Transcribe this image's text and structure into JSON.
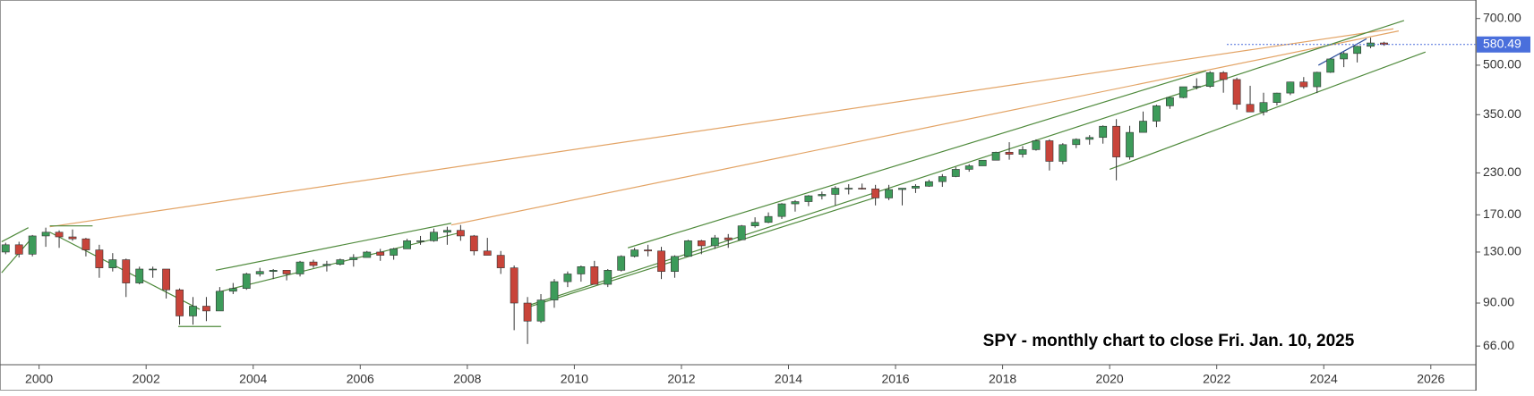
{
  "chart_data": {
    "type": "candlestick",
    "annotation": "SPY - monthly chart to close Fri. Jan. 10, 2025",
    "log_scale": true,
    "up_color": "#3d9b5a",
    "down_color": "#c8443a",
    "xlim": [
      1999.27,
      2026.84
    ],
    "xticks": [
      2000,
      2002,
      2004,
      2006,
      2008,
      2010,
      2012,
      2014,
      2016,
      2018,
      2020,
      2022,
      2024,
      2026
    ],
    "ylim": [
      57.7,
      800
    ],
    "yticks": [
      {
        "value": 66,
        "label": "66.00"
      },
      {
        "value": 90,
        "label": "90.00"
      },
      {
        "value": 130,
        "label": "130.00"
      },
      {
        "value": 170,
        "label": "170.00"
      },
      {
        "value": 230,
        "label": "230.00"
      },
      {
        "value": 350,
        "label": "350.00"
      },
      {
        "value": 500,
        "label": "500.00"
      },
      {
        "value": 700,
        "label": "700.00"
      }
    ],
    "last_price": 580.49,
    "last_price_color": "#4a6fdc",
    "x": [
      1999.25,
      1999.5,
      1999.75,
      2000.0,
      2000.25,
      2000.5,
      2000.75,
      2001.0,
      2001.25,
      2001.5,
      2001.75,
      2002.0,
      2002.25,
      2002.5,
      2002.75,
      2003.0,
      2003.25,
      2003.5,
      2003.75,
      2004.0,
      2004.25,
      2004.5,
      2004.75,
      2005.0,
      2005.25,
      2005.5,
      2005.75,
      2006.0,
      2006.25,
      2006.5,
      2006.75,
      2007.0,
      2007.25,
      2007.5,
      2007.75,
      2008.0,
      2008.25,
      2008.5,
      2008.75,
      2009.0,
      2009.25,
      2009.5,
      2009.75,
      2010.0,
      2010.25,
      2010.5,
      2010.75,
      2011.0,
      2011.25,
      2011.5,
      2011.75,
      2012.0,
      2012.25,
      2012.5,
      2012.75,
      2013.0,
      2013.25,
      2013.5,
      2013.75,
      2014.0,
      2014.25,
      2014.5,
      2014.75,
      2015.0,
      2015.25,
      2015.5,
      2015.75,
      2016.0,
      2016.25,
      2016.5,
      2016.75,
      2017.0,
      2017.25,
      2017.5,
      2017.75,
      2018.0,
      2018.25,
      2018.5,
      2018.75,
      2019.0,
      2019.25,
      2019.5,
      2019.75,
      2020.0,
      2020.25,
      2020.5,
      2020.75,
      2021.0,
      2021.25,
      2021.5,
      2021.75,
      2022.0,
      2022.25,
      2022.5,
      2022.75,
      2023.0,
      2023.25,
      2023.5,
      2023.75,
      2024.0,
      2024.25,
      2024.5,
      2024.75,
      2025.0
    ],
    "open": [
      130,
      137,
      128,
      146,
      150,
      145,
      143,
      132,
      116,
      123,
      104,
      115,
      115,
      99,
      82,
      88,
      85,
      98,
      100,
      111,
      113,
      114,
      111,
      121,
      118,
      119,
      123,
      125,
      130,
      127,
      133,
      141,
      141,
      150,
      152,
      146,
      131,
      127,
      116,
      90,
      79,
      92,
      105,
      111,
      117,
      103,
      114,
      126,
      132,
      131,
      113,
      126,
      141,
      136,
      144,
      142,
      157,
      161,
      168,
      184,
      187,
      195,
      197,
      206,
      206,
      205,
      192,
      204,
      206,
      209,
      216,
      224,
      236,
      242,
      252,
      267,
      263,
      272,
      290,
      250,
      282,
      293,
      297,
      322,
      258,
      308,
      334,
      373,
      396,
      428,
      429,
      474,
      451,
      377,
      357,
      382,
      409,
      443,
      428,
      475,
      523,
      544,
      573,
      587
    ],
    "high": [
      139,
      140,
      147,
      155,
      152,
      153,
      144,
      137,
      129,
      124,
      117,
      117,
      115,
      100,
      94,
      94,
      101,
      104,
      112,
      116,
      115,
      114,
      122,
      123,
      122,
      124,
      128,
      131,
      133,
      134,
      143,
      146,
      154,
      156,
      158,
      147,
      144,
      131,
      118,
      94,
      96,
      107,
      113,
      118,
      122,
      115,
      127,
      134,
      137,
      135,
      127,
      142,
      142,
      147,
      148,
      158,
      167,
      173,
      185,
      189,
      196,
      201,
      209,
      212,
      213,
      211,
      211,
      206,
      212,
      219,
      228,
      240,
      245,
      252,
      268,
      287,
      279,
      293,
      293,
      285,
      295,
      302,
      324,
      339,
      323,
      358,
      376,
      398,
      428,
      455,
      479,
      479,
      457,
      431,
      410,
      410,
      444,
      459,
      477,
      524,
      550,
      575,
      610,
      592
    ],
    "low": [
      128,
      125,
      126,
      135,
      134,
      141,
      126,
      108,
      113,
      94,
      103,
      108,
      93,
      77,
      77,
      79,
      85,
      96,
      99,
      109,
      107,
      106,
      109,
      116,
      113,
      118,
      117,
      125,
      122,
      123,
      133,
      137,
      140,
      137,
      141,
      127,
      127,
      111,
      74,
      67,
      78,
      87,
      101,
      105,
      104,
      101,
      113,
      125,
      126,
      107,
      108,
      126,
      128,
      133,
      134,
      142,
      155,
      160,
      165,
      174,
      181,
      190,
      182,
      197,
      204,
      182,
      189,
      182,
      199,
      208,
      208,
      223,
      232,
      242,
      252,
      253,
      257,
      270,
      234,
      245,
      275,
      282,
      284,
      218,
      253,
      308,
      320,
      365,
      394,
      420,
      425,
      410,
      363,
      357,
      348,
      374,
      403,
      422,
      409,
      473,
      493,
      510,
      565,
      575
    ],
    "close": [
      137,
      128,
      146,
      150,
      145,
      143,
      132,
      116,
      123,
      104,
      115,
      115,
      99,
      82,
      88,
      85,
      98,
      100,
      111,
      113,
      114,
      111,
      121,
      118,
      119,
      123,
      125,
      130,
      127,
      133,
      141,
      141,
      150,
      152,
      146,
      131,
      127,
      116,
      90,
      79,
      92,
      105,
      111,
      117,
      103,
      114,
      126,
      132,
      131,
      113,
      126,
      141,
      136,
      144,
      142,
      157,
      161,
      168,
      184,
      187,
      195,
      197,
      206,
      206,
      205,
      192,
      204,
      206,
      209,
      216,
      224,
      236,
      242,
      252,
      267,
      263,
      272,
      290,
      250,
      282,
      293,
      297,
      322,
      258,
      308,
      334,
      373,
      396,
      428,
      429,
      474,
      451,
      377,
      357,
      382,
      409,
      443,
      428,
      475,
      523,
      544,
      573,
      587,
      580.49
    ],
    "trendlines": [
      {
        "color": "#e3a466",
        "x": [
          2000.2,
          2025.3
        ],
        "y": [
          156,
          650
        ]
      },
      {
        "color": "#e3a466",
        "x": [
          2007.7,
          2025.4
        ],
        "y": [
          158,
          640
        ]
      },
      {
        "color": "#4f8a3c",
        "x": [
          2009.1,
          2025.5
        ],
        "y": [
          88,
          690
        ]
      },
      {
        "color": "#4f8a3c",
        "x": [
          2020.0,
          2025.9
        ],
        "y": [
          236,
          550
        ]
      },
      {
        "color": "#4f8a3c",
        "x": [
          2011.0,
          2021.8
        ],
        "y": [
          134,
          480
        ]
      },
      {
        "color": "#4f8a3c",
        "x": [
          2009.1,
          2015.6
        ],
        "y": [
          87,
          192
        ]
      },
      {
        "color": "#4f8a3c",
        "x": [
          1999.3,
          1999.9
        ],
        "y": [
          112,
          146
        ]
      },
      {
        "color": "#4f8a3c",
        "x": [
          1999.3,
          1999.8
        ],
        "y": [
          140,
          155
        ]
      },
      {
        "color": "#4f8a3c",
        "x": [
          2000.2,
          2003.0
        ],
        "y": [
          150,
          86
        ]
      },
      {
        "color": "#4f8a3c",
        "x": [
          2000.2,
          2001.0
        ],
        "y": [
          157,
          157
        ]
      },
      {
        "color": "#4f8a3c",
        "x": [
          2002.6,
          2003.4
        ],
        "y": [
          76,
          76
        ]
      },
      {
        "color": "#4f8a3c",
        "x": [
          2003.3,
          2007.9
        ],
        "y": [
          97,
          150
        ]
      },
      {
        "color": "#4f8a3c",
        "x": [
          2003.3,
          2007.7
        ],
        "y": [
          114,
          160
        ]
      },
      {
        "color": "#2c4f9c",
        "x": [
          2023.9,
          2024.8
        ],
        "y": [
          500,
          605
        ]
      }
    ]
  }
}
